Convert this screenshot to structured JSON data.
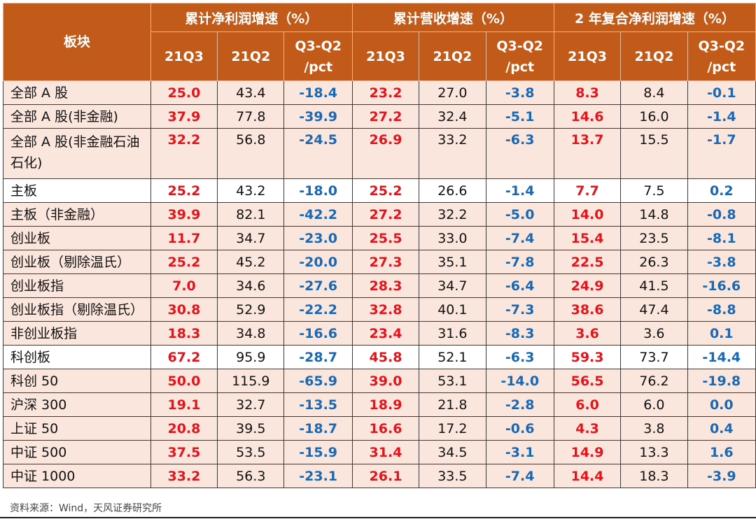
{
  "header": {
    "block_label": "板块",
    "groups": [
      "累计净利润增速（%）",
      "累计营收增速（%）",
      "2 年复合净利润增速（%）"
    ],
    "sub": [
      "21Q3",
      "21Q2",
      "Q3-Q2\n/pct"
    ]
  },
  "colors": {
    "header_bg": "#c25b1a",
    "row_shade": "#fbe6dd",
    "q3_value": "#e3141b",
    "diff_value": "#1a68b3"
  },
  "rows": [
    {
      "name": "全部 A 股",
      "v": [
        "25.0",
        "43.4",
        "-18.4",
        "23.2",
        "27.0",
        "-3.8",
        "8.3",
        "8.4",
        "-0.1"
      ]
    },
    {
      "name": "全部 A 股(非金融)",
      "v": [
        "37.9",
        "77.8",
        "-39.9",
        "27.2",
        "32.4",
        "-5.1",
        "14.6",
        "16.0",
        "-1.4"
      ]
    },
    {
      "name": "全部 A 股(非金融石油石化)",
      "v": [
        "32.2",
        "56.8",
        "-24.5",
        "26.9",
        "33.2",
        "-6.3",
        "13.7",
        "15.5",
        "-1.7"
      ]
    },
    {
      "name": "主板",
      "v": [
        "25.2",
        "43.2",
        "-18.0",
        "25.2",
        "26.6",
        "-1.4",
        "7.7",
        "7.5",
        "0.2"
      ]
    },
    {
      "name": "主板（非金融）",
      "v": [
        "39.9",
        "82.1",
        "-42.2",
        "27.2",
        "32.2",
        "-5.0",
        "14.0",
        "14.8",
        "-0.8"
      ]
    },
    {
      "name": "创业板",
      "v": [
        "11.7",
        "34.7",
        "-23.0",
        "25.5",
        "33.0",
        "-7.4",
        "15.4",
        "23.5",
        "-8.1"
      ]
    },
    {
      "name": "创业板（剔除温氏）",
      "v": [
        "25.2",
        "45.2",
        "-20.0",
        "27.3",
        "35.1",
        "-7.8",
        "22.5",
        "26.3",
        "-3.8"
      ]
    },
    {
      "name": "创业板指",
      "v": [
        "7.0",
        "34.6",
        "-27.6",
        "28.3",
        "34.7",
        "-6.4",
        "24.9",
        "41.5",
        "-16.6"
      ]
    },
    {
      "name": "创业板指（剔除温氏）",
      "v": [
        "30.8",
        "52.9",
        "-22.2",
        "32.8",
        "40.1",
        "-7.3",
        "38.6",
        "47.4",
        "-8.8"
      ]
    },
    {
      "name": "非创业板指",
      "v": [
        "18.3",
        "34.8",
        "-16.6",
        "23.4",
        "31.6",
        "-8.3",
        "3.6",
        "3.6",
        "0.1"
      ]
    },
    {
      "name": "科创板",
      "v": [
        "67.2",
        "95.9",
        "-28.7",
        "45.8",
        "52.1",
        "-6.3",
        "59.3",
        "73.7",
        "-14.4"
      ]
    },
    {
      "name": "科创 50",
      "v": [
        "50.0",
        "115.9",
        "-65.9",
        "39.0",
        "53.1",
        "-14.0",
        "56.5",
        "76.2",
        "-19.8"
      ]
    },
    {
      "name": "沪深 300",
      "v": [
        "19.1",
        "32.7",
        "-13.5",
        "18.9",
        "21.8",
        "-2.8",
        "6.0",
        "6.0",
        "0.0"
      ]
    },
    {
      "name": "上证 50",
      "v": [
        "20.8",
        "39.5",
        "-18.7",
        "16.6",
        "17.2",
        "-0.6",
        "4.3",
        "3.8",
        "0.4"
      ]
    },
    {
      "name": "中证 500",
      "v": [
        "37.5",
        "53.5",
        "-15.9",
        "31.4",
        "34.5",
        "-3.1",
        "14.9",
        "13.3",
        "1.6"
      ]
    },
    {
      "name": "中证 1000",
      "v": [
        "33.2",
        "56.3",
        "-23.1",
        "26.1",
        "33.5",
        "-7.4",
        "14.4",
        "18.3",
        "-3.9"
      ]
    }
  ],
  "source": "资料来源：Wind，天风证券研究所"
}
